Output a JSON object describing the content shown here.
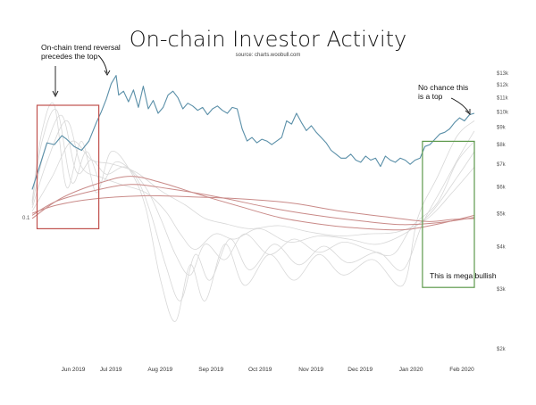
{
  "chart_data": {
    "type": "line",
    "title": "On-chain Investor Activity",
    "subtitle": "source: charts.woobull.com",
    "xlabel": "",
    "ylabel": "",
    "x_ticks": [
      "Jun 2019",
      "Jul 2019",
      "Aug 2019",
      "Sep 2019",
      "Oct 2019",
      "Nov 2019",
      "Dec 2019",
      "Jan 2020",
      "Feb 2020"
    ],
    "y_ticks": [
      "$13k",
      "$12k",
      "$11k",
      "$10k",
      "$9k",
      "$8k",
      "$7k",
      "$6k",
      "$5k",
      "$4k",
      "$3k",
      "$2k"
    ],
    "left_axis_label": "0.1",
    "price_color": "#5a8fa8",
    "price_series": {
      "name": "",
      "values": [
        [
          0,
          5900
        ],
        [
          3,
          6900
        ],
        [
          6,
          8100
        ],
        [
          9,
          8000
        ],
        [
          12,
          8500
        ],
        [
          14,
          8300
        ],
        [
          17,
          7900
        ],
        [
          20,
          7700
        ],
        [
          23,
          8200
        ],
        [
          26,
          9300
        ],
        [
          28,
          10000
        ],
        [
          30,
          10900
        ],
        [
          32,
          12100
        ],
        [
          34,
          12800
        ],
        [
          35,
          11200
        ],
        [
          37,
          11500
        ],
        [
          39,
          10700
        ],
        [
          41,
          11600
        ],
        [
          43,
          10300
        ],
        [
          45,
          11900
        ],
        [
          47,
          10200
        ],
        [
          49,
          10800
        ],
        [
          51,
          9900
        ],
        [
          53,
          10300
        ],
        [
          55,
          11200
        ],
        [
          57,
          11500
        ],
        [
          59,
          11000
        ],
        [
          61,
          10200
        ],
        [
          63,
          10600
        ],
        [
          65,
          10400
        ],
        [
          67,
          10100
        ],
        [
          69,
          10300
        ],
        [
          71,
          9800
        ],
        [
          73,
          10200
        ],
        [
          75,
          10400
        ],
        [
          77,
          10100
        ],
        [
          79,
          9900
        ],
        [
          81,
          10300
        ],
        [
          83,
          10200
        ],
        [
          85,
          8900
        ],
        [
          87,
          8200
        ],
        [
          89,
          8400
        ],
        [
          91,
          8100
        ],
        [
          93,
          8300
        ],
        [
          95,
          8200
        ],
        [
          97,
          8000
        ],
        [
          99,
          8200
        ],
        [
          101,
          8400
        ],
        [
          103,
          9400
        ],
        [
          105,
          9200
        ],
        [
          107,
          9900
        ],
        [
          109,
          9300
        ],
        [
          111,
          8800
        ],
        [
          113,
          9100
        ],
        [
          115,
          8700
        ],
        [
          117,
          8400
        ],
        [
          119,
          8100
        ],
        [
          121,
          7700
        ],
        [
          123,
          7500
        ],
        [
          125,
          7300
        ],
        [
          127,
          7300
        ],
        [
          129,
          7500
        ],
        [
          131,
          7200
        ],
        [
          133,
          7100
        ],
        [
          135,
          7400
        ],
        [
          137,
          7200
        ],
        [
          139,
          7300
        ],
        [
          141,
          6900
        ],
        [
          143,
          7400
        ],
        [
          145,
          7200
        ],
        [
          147,
          7100
        ],
        [
          149,
          7300
        ],
        [
          151,
          7200
        ],
        [
          153,
          7000
        ],
        [
          155,
          7200
        ],
        [
          157,
          7300
        ],
        [
          159,
          7900
        ],
        [
          161,
          8000
        ],
        [
          163,
          8300
        ],
        [
          165,
          8600
        ],
        [
          167,
          8700
        ],
        [
          169,
          8900
        ],
        [
          171,
          9300
        ],
        [
          173,
          9600
        ],
        [
          175,
          9400
        ],
        [
          177,
          9800
        ],
        [
          179,
          9900
        ]
      ]
    },
    "oscillators": {
      "color": "#d8d8d8",
      "red_color": "#c98a88",
      "values": [
        {
          "kind": "red",
          "points": [
            [
              0,
              0.1
            ],
            [
              10,
              0.18
            ],
            [
              25,
              0.24
            ],
            [
              45,
              0.27
            ],
            [
              65,
              0.26
            ],
            [
              85,
              0.24
            ],
            [
              105,
              0.2
            ],
            [
              125,
              0.12
            ],
            [
              145,
              0.06
            ],
            [
              160,
              0.02
            ],
            [
              170,
              0.04
            ],
            [
              179,
              0.05
            ]
          ]
        },
        {
          "kind": "red",
          "points": [
            [
              0,
              0.08
            ],
            [
              10,
              0.22
            ],
            [
              25,
              0.32
            ],
            [
              40,
              0.38
            ],
            [
              55,
              0.34
            ],
            [
              75,
              0.26
            ],
            [
              95,
              0.16
            ],
            [
              115,
              0.08
            ],
            [
              135,
              0.02
            ],
            [
              150,
              -0.01
            ],
            [
              165,
              0.01
            ],
            [
              179,
              0.06
            ]
          ]
        },
        {
          "kind": "red",
          "points": [
            [
              0,
              0.05
            ],
            [
              12,
              0.25
            ],
            [
              28,
              0.4
            ],
            [
              40,
              0.46
            ],
            [
              52,
              0.4
            ],
            [
              68,
              0.28
            ],
            [
              85,
              0.16
            ],
            [
              100,
              0.06
            ],
            [
              115,
              0.0
            ],
            [
              130,
              -0.04
            ],
            [
              150,
              -0.06
            ],
            [
              165,
              0.0
            ],
            [
              179,
              0.08
            ]
          ]
        },
        {
          "kind": "gray",
          "points": [
            [
              0,
              0.12
            ],
            [
              8,
              0.45
            ],
            [
              16,
              0.8
            ],
            [
              24,
              0.62
            ],
            [
              32,
              0.58
            ],
            [
              42,
              0.5
            ],
            [
              52,
              0.32
            ],
            [
              62,
              0.18
            ],
            [
              70,
              0.05
            ],
            [
              78,
              0.0
            ],
            [
              88,
              -0.05
            ],
            [
              100,
              -0.02
            ],
            [
              112,
              -0.08
            ],
            [
              124,
              -0.12
            ],
            [
              136,
              -0.1
            ],
            [
              148,
              -0.08
            ],
            [
              160,
              0.05
            ],
            [
              170,
              0.3
            ],
            [
              179,
              0.55
            ]
          ]
        },
        {
          "kind": "gray",
          "points": [
            [
              0,
              0.15
            ],
            [
              6,
              0.6
            ],
            [
              14,
              1.0
            ],
            [
              20,
              0.55
            ],
            [
              28,
              0.45
            ],
            [
              36,
              0.38
            ],
            [
              46,
              0.3
            ],
            [
              54,
              0.12
            ],
            [
              60,
              -0.1
            ],
            [
              66,
              -0.25
            ],
            [
              74,
              -0.1
            ],
            [
              82,
              -0.15
            ],
            [
              92,
              -0.05
            ],
            [
              104,
              -0.18
            ],
            [
              116,
              -0.12
            ],
            [
              128,
              -0.15
            ],
            [
              140,
              -0.2
            ],
            [
              152,
              -0.08
            ],
            [
              162,
              0.12
            ],
            [
              172,
              0.45
            ],
            [
              179,
              0.7
            ]
          ]
        },
        {
          "kind": "gray",
          "points": [
            [
              0,
              0.18
            ],
            [
              5,
              0.7
            ],
            [
              12,
              1.05
            ],
            [
              18,
              0.5
            ],
            [
              24,
              0.62
            ],
            [
              30,
              0.48
            ],
            [
              38,
              0.55
            ],
            [
              46,
              0.35
            ],
            [
              52,
              0.05
            ],
            [
              58,
              -0.3
            ],
            [
              64,
              -0.5
            ],
            [
              70,
              -0.2
            ],
            [
              78,
              -0.35
            ],
            [
              86,
              -0.1
            ],
            [
              96,
              -0.3
            ],
            [
              106,
              -0.15
            ],
            [
              116,
              -0.28
            ],
            [
              126,
              -0.18
            ],
            [
              136,
              -0.25
            ],
            [
              146,
              -0.3
            ],
            [
              154,
              -0.02
            ],
            [
              164,
              0.2
            ],
            [
              172,
              0.6
            ],
            [
              179,
              0.8
            ]
          ]
        },
        {
          "kind": "gray",
          "points": [
            [
              0,
              0.2
            ],
            [
              4,
              0.8
            ],
            [
              10,
              1.1
            ],
            [
              16,
              0.4
            ],
            [
              22,
              0.7
            ],
            [
              28,
              0.4
            ],
            [
              34,
              0.6
            ],
            [
              42,
              0.45
            ],
            [
              48,
              0.1
            ],
            [
              54,
              -0.4
            ],
            [
              60,
              -0.75
            ],
            [
              66,
              -0.3
            ],
            [
              72,
              -0.55
            ],
            [
              80,
              -0.15
            ],
            [
              88,
              -0.45
            ],
            [
              98,
              -0.2
            ],
            [
              108,
              -0.4
            ],
            [
              118,
              -0.22
            ],
            [
              128,
              -0.38
            ],
            [
              140,
              -0.28
            ],
            [
              150,
              -0.45
            ],
            [
              158,
              0.0
            ],
            [
              166,
              0.35
            ],
            [
              174,
              0.7
            ],
            [
              179,
              0.9
            ]
          ]
        },
        {
          "kind": "gray",
          "points": [
            [
              0,
              0.22
            ],
            [
              4,
              0.9
            ],
            [
              9,
              1.15
            ],
            [
              14,
              0.35
            ],
            [
              20,
              0.8
            ],
            [
              26,
              0.3
            ],
            [
              32,
              0.7
            ],
            [
              40,
              0.5
            ],
            [
              46,
              0.15
            ],
            [
              52,
              -0.55
            ],
            [
              58,
              -0.95
            ],
            [
              64,
              -0.4
            ],
            [
              70,
              -0.75
            ],
            [
              78,
              -0.2
            ],
            [
              86,
              -0.6
            ],
            [
              96,
              -0.3
            ],
            [
              106,
              -0.55
            ],
            [
              116,
              -0.3
            ],
            [
              126,
              -0.5
            ],
            [
              138,
              -0.35
            ],
            [
              150,
              -0.6
            ],
            [
              156,
              0.05
            ],
            [
              164,
              0.45
            ],
            [
              172,
              0.85
            ],
            [
              179,
              1.0
            ]
          ]
        }
      ]
    },
    "annotations": [
      {
        "text_lines": [
          "On-chain trend reversal",
          "precedes the top"
        ]
      },
      {
        "text_lines": [
          "No chance this",
          "is a top"
        ]
      },
      {
        "text_lines": [
          "This is mega bullish"
        ]
      }
    ],
    "highlight_boxes": [
      {
        "color": "#c0504d",
        "x_range": [
          2,
          27
        ],
        "y_range": [
          -0.05,
          1.15
        ]
      },
      {
        "color": "#5e9a4c",
        "x_range": [
          158,
          179
        ],
        "y_range": [
          -0.62,
          0.8
        ]
      }
    ],
    "legend": "none",
    "grid": false
  }
}
